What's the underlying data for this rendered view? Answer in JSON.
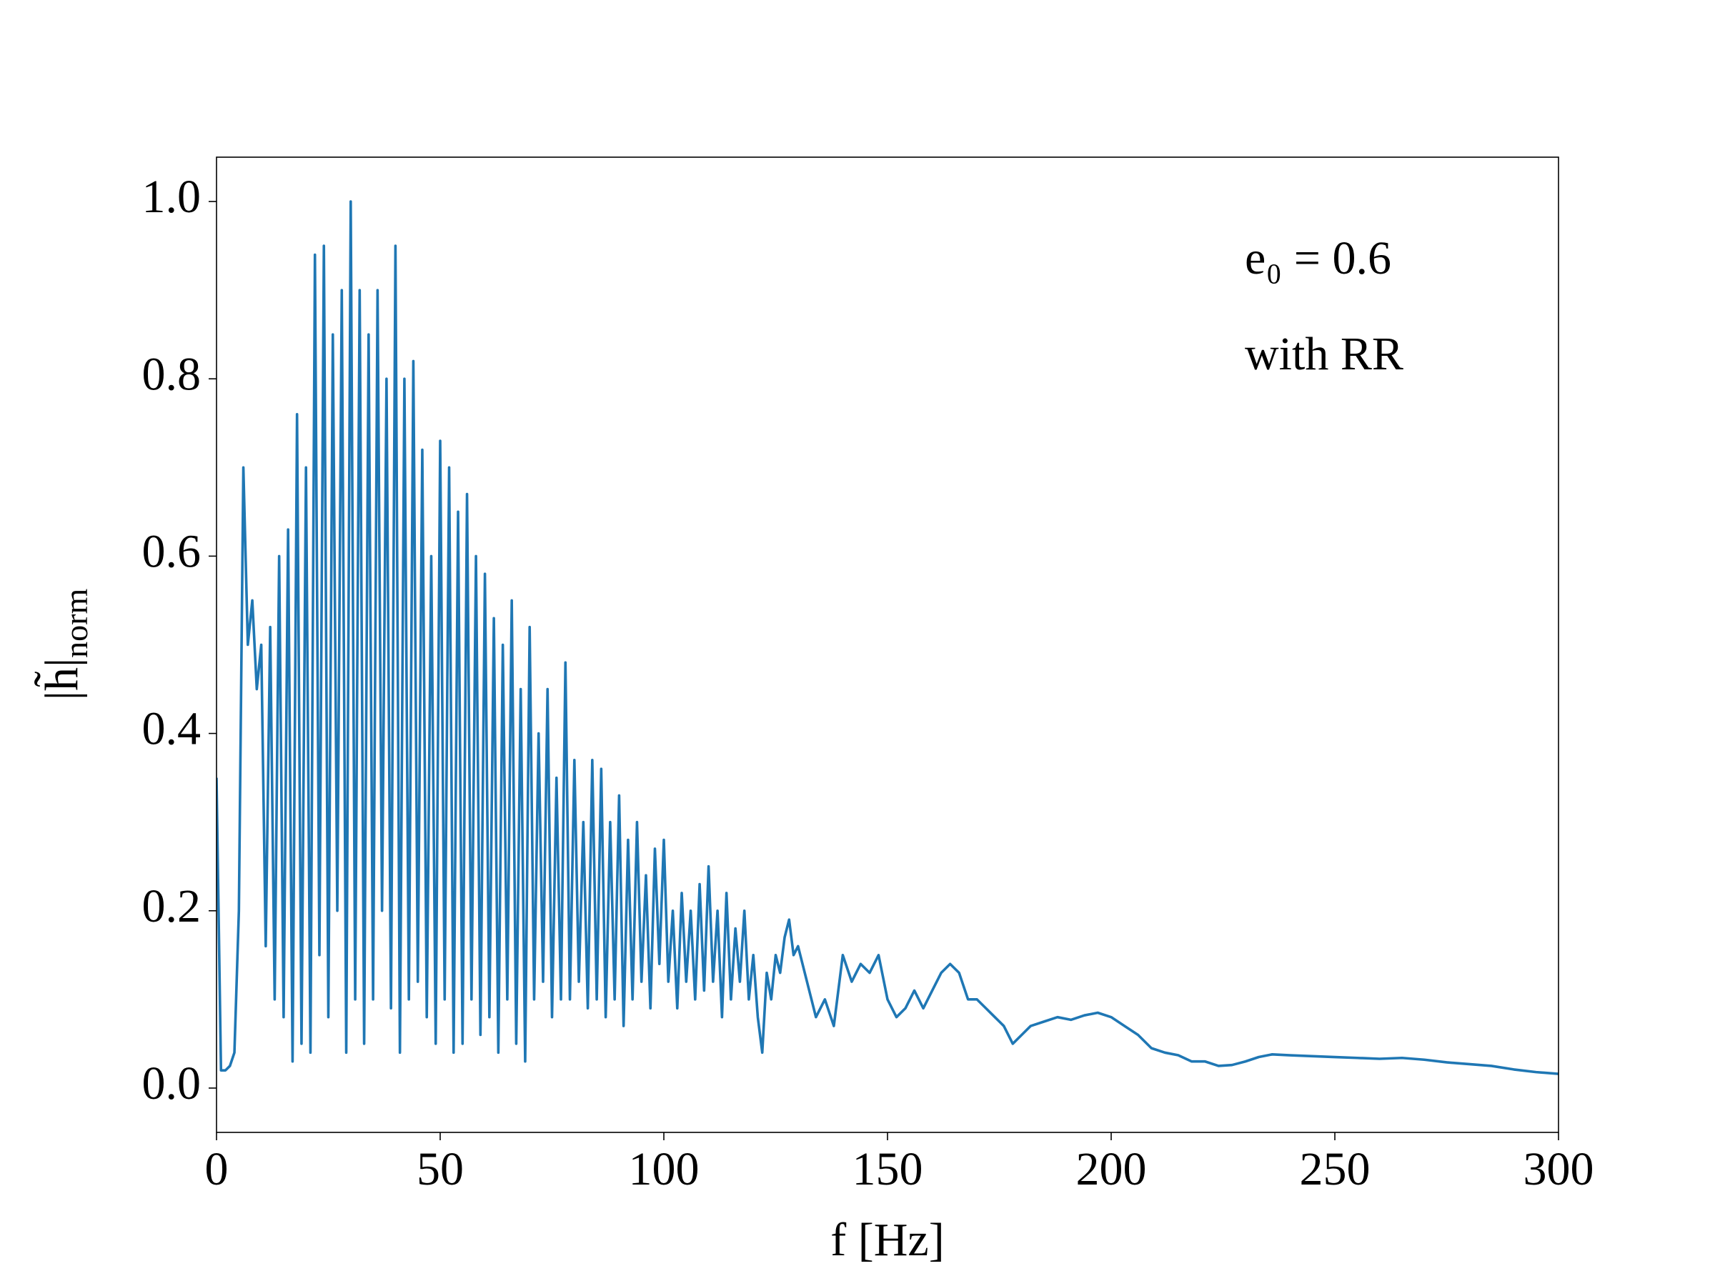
{
  "chart_data": {
    "type": "line",
    "x_label": "f [Hz]",
    "y_label": "|h̃|",
    "y_label_sub": "norm",
    "annotations": [
      "e₀ = 0.6",
      "with RR"
    ],
    "color": "#1f77b4",
    "x": [
      0,
      1,
      2,
      3,
      4,
      5,
      6,
      7,
      8,
      9,
      10,
      11,
      12,
      13,
      14,
      15,
      16,
      17,
      18,
      19,
      20,
      21,
      22,
      23,
      24,
      25,
      26,
      27,
      28,
      29,
      30,
      31,
      32,
      33,
      34,
      35,
      36,
      37,
      38,
      39,
      40,
      41,
      42,
      43,
      44,
      45,
      46,
      47,
      48,
      49,
      50,
      51,
      52,
      53,
      54,
      55,
      56,
      57,
      58,
      59,
      60,
      61,
      62,
      63,
      64,
      65,
      66,
      67,
      68,
      69,
      70,
      71,
      72,
      73,
      74,
      75,
      76,
      77,
      78,
      79,
      80,
      81,
      82,
      83,
      84,
      85,
      86,
      87,
      88,
      89,
      90,
      91,
      92,
      93,
      94,
      95,
      96,
      97,
      98,
      99,
      100,
      101,
      102,
      103,
      104,
      105,
      106,
      107,
      108,
      109,
      110,
      111,
      112,
      113,
      114,
      115,
      116,
      117,
      118,
      119,
      120,
      121,
      122,
      123,
      124,
      125,
      126,
      127,
      128,
      129,
      130,
      132,
      134,
      136,
      138,
      140,
      142,
      144,
      146,
      148,
      150,
      152,
      154,
      156,
      158,
      160,
      162,
      164,
      166,
      168,
      170,
      172,
      174,
      176,
      178,
      180,
      182,
      185,
      188,
      191,
      194,
      197,
      200,
      203,
      206,
      209,
      212,
      215,
      218,
      221,
      224,
      227,
      230,
      233,
      236,
      240,
      245,
      250,
      255,
      260,
      265,
      270,
      275,
      280,
      285,
      290,
      295,
      300
    ],
    "values": [
      0.35,
      0.02,
      0.02,
      0.025,
      0.04,
      0.2,
      0.7,
      0.5,
      0.55,
      0.45,
      0.5,
      0.16,
      0.52,
      0.1,
      0.6,
      0.08,
      0.63,
      0.03,
      0.76,
      0.05,
      0.7,
      0.04,
      0.94,
      0.15,
      0.95,
      0.08,
      0.85,
      0.2,
      0.9,
      0.04,
      1.0,
      0.1,
      0.9,
      0.05,
      0.85,
      0.1,
      0.9,
      0.2,
      0.8,
      0.09,
      0.95,
      0.04,
      0.8,
      0.1,
      0.82,
      0.12,
      0.72,
      0.08,
      0.6,
      0.05,
      0.73,
      0.1,
      0.7,
      0.04,
      0.65,
      0.05,
      0.67,
      0.1,
      0.6,
      0.06,
      0.58,
      0.08,
      0.53,
      0.04,
      0.5,
      0.1,
      0.55,
      0.05,
      0.45,
      0.03,
      0.52,
      0.1,
      0.4,
      0.12,
      0.45,
      0.08,
      0.35,
      0.1,
      0.48,
      0.1,
      0.37,
      0.12,
      0.3,
      0.09,
      0.37,
      0.1,
      0.36,
      0.08,
      0.3,
      0.1,
      0.33,
      0.07,
      0.28,
      0.1,
      0.3,
      0.12,
      0.24,
      0.09,
      0.27,
      0.14,
      0.28,
      0.12,
      0.2,
      0.09,
      0.22,
      0.12,
      0.2,
      0.1,
      0.23,
      0.11,
      0.25,
      0.12,
      0.2,
      0.08,
      0.22,
      0.1,
      0.18,
      0.12,
      0.2,
      0.1,
      0.15,
      0.08,
      0.04,
      0.13,
      0.1,
      0.15,
      0.13,
      0.17,
      0.19,
      0.15,
      0.16,
      0.12,
      0.08,
      0.1,
      0.07,
      0.15,
      0.12,
      0.14,
      0.13,
      0.15,
      0.1,
      0.08,
      0.09,
      0.11,
      0.09,
      0.11,
      0.13,
      0.14,
      0.13,
      0.1,
      0.1,
      0.09,
      0.08,
      0.07,
      0.05,
      0.06,
      0.07,
      0.075,
      0.08,
      0.077,
      0.082,
      0.085,
      0.08,
      0.07,
      0.06,
      0.045,
      0.04,
      0.037,
      0.03,
      0.03,
      0.025,
      0.026,
      0.03,
      0.035,
      0.038,
      0.037,
      0.036,
      0.035,
      0.034,
      0.033,
      0.034,
      0.032,
      0.029,
      0.027,
      0.025,
      0.021,
      0.018,
      0.016
    ],
    "xlim": [
      0,
      300
    ],
    "xticks": [
      0,
      50,
      100,
      150,
      200,
      250,
      300
    ],
    "ylim": [
      -0.05,
      1.05
    ],
    "yticks": [
      {
        "value": 0,
        "label": "0.0"
      },
      0.2,
      0.4,
      0.6,
      0.8,
      {
        "value": 1,
        "label": "1.0"
      }
    ],
    "grid": false
  }
}
